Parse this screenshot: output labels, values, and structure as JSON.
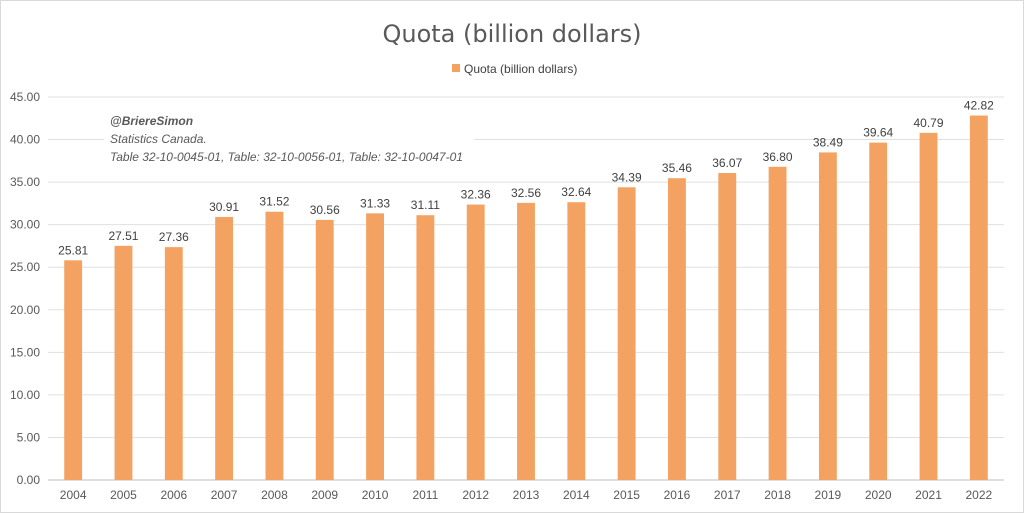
{
  "chart_data": {
    "type": "bar",
    "title": "Quota (billion dollars)",
    "series": [
      {
        "name": "Quota (billion dollars)",
        "values": [
          25.81,
          27.51,
          27.36,
          30.91,
          31.52,
          30.56,
          31.33,
          31.11,
          32.36,
          32.56,
          32.64,
          34.39,
          35.46,
          36.07,
          36.8,
          38.49,
          39.64,
          40.79,
          42.82
        ]
      }
    ],
    "categories": [
      "2004",
      "2005",
      "2006",
      "2007",
      "2008",
      "2009",
      "2010",
      "2011",
      "2012",
      "2013",
      "2014",
      "2015",
      "2016",
      "2017",
      "2018",
      "2019",
      "2020",
      "2021",
      "2022"
    ],
    "data_labels": [
      "25.81",
      "27.51",
      "27.36",
      "30.91",
      "31.52",
      "30.56",
      "31.33",
      "31.11",
      "32.36",
      "32.56",
      "32.64",
      "34.39",
      "35.46",
      "36.07",
      "36.80",
      "38.49",
      "39.64",
      "40.79",
      "42.82"
    ],
    "y_ticks": [
      "0.00",
      "5.00",
      "10.00",
      "15.00",
      "20.00",
      "25.00",
      "30.00",
      "35.00",
      "40.00",
      "45.00"
    ],
    "ylim": [
      0,
      45
    ],
    "legend_position": "top",
    "grid": true,
    "bar_color": "#f4a261"
  },
  "annotation": {
    "author": "@BriereSimon",
    "source": "Statistics Canada.",
    "tables": "Table 32-10-0045-01, Table: 32-10-0056-01, Table: 32-10-0047-01"
  }
}
